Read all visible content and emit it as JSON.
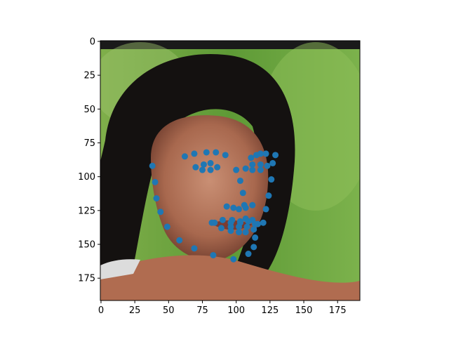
{
  "chart_data": {
    "type": "scatter",
    "title": "",
    "xlabel": "",
    "ylabel": "",
    "xlim": [
      -0.5,
      191.5
    ],
    "ylim": [
      191.5,
      -0.5
    ],
    "y_inverted": true,
    "xticks": [
      0,
      25,
      50,
      75,
      100,
      125,
      150,
      175
    ],
    "yticks": [
      0,
      25,
      50,
      75,
      100,
      125,
      150,
      175
    ],
    "grid": false,
    "background": "photo of a woman's face (dark hair, green foliage background)",
    "point_color": "#1f77b4",
    "series": [
      {
        "points": [
          [
            38,
            92
          ],
          [
            40,
            104
          ],
          [
            41,
            116
          ],
          [
            44,
            126
          ],
          [
            49,
            137
          ],
          [
            58,
            147
          ],
          [
            69,
            153
          ],
          [
            83,
            158
          ],
          [
            98,
            161
          ],
          [
            109,
            157
          ],
          [
            113,
            152
          ],
          [
            114,
            145
          ],
          [
            120,
            134
          ],
          [
            122,
            124
          ],
          [
            124,
            114
          ],
          [
            126,
            102
          ],
          [
            127,
            90
          ],
          [
            62,
            85
          ],
          [
            69,
            83
          ],
          [
            78,
            82
          ],
          [
            85,
            82
          ],
          [
            92,
            84
          ],
          [
            111,
            86
          ],
          [
            115,
            84
          ],
          [
            118,
            83
          ],
          [
            122,
            83
          ],
          [
            129,
            84
          ],
          [
            100,
            95
          ],
          [
            103,
            103
          ],
          [
            105,
            112
          ],
          [
            106,
            121
          ],
          [
            93,
            122
          ],
          [
            98,
            123
          ],
          [
            102,
            124
          ],
          [
            107,
            123
          ],
          [
            112,
            121
          ],
          [
            70,
            93
          ],
          [
            76,
            91
          ],
          [
            81,
            90
          ],
          [
            86,
            93
          ],
          [
            81,
            95
          ],
          [
            75,
            95
          ],
          [
            107,
            94
          ],
          [
            112,
            91
          ],
          [
            118,
            91
          ],
          [
            123,
            92
          ],
          [
            118,
            95
          ],
          [
            112,
            95
          ],
          [
            82,
            134
          ],
          [
            90,
            132
          ],
          [
            97,
            132
          ],
          [
            103,
            133
          ],
          [
            107,
            131
          ],
          [
            112,
            132
          ],
          [
            116,
            135
          ],
          [
            113,
            139
          ],
          [
            107,
            141
          ],
          [
            102,
            141
          ],
          [
            96,
            140
          ],
          [
            89,
            138
          ],
          [
            84,
            134
          ],
          [
            96,
            134
          ],
          [
            103,
            134
          ],
          [
            109,
            133
          ],
          [
            114,
            135
          ],
          [
            108,
            137
          ],
          [
            102,
            137
          ],
          [
            96,
            137
          ]
        ]
      }
    ]
  }
}
